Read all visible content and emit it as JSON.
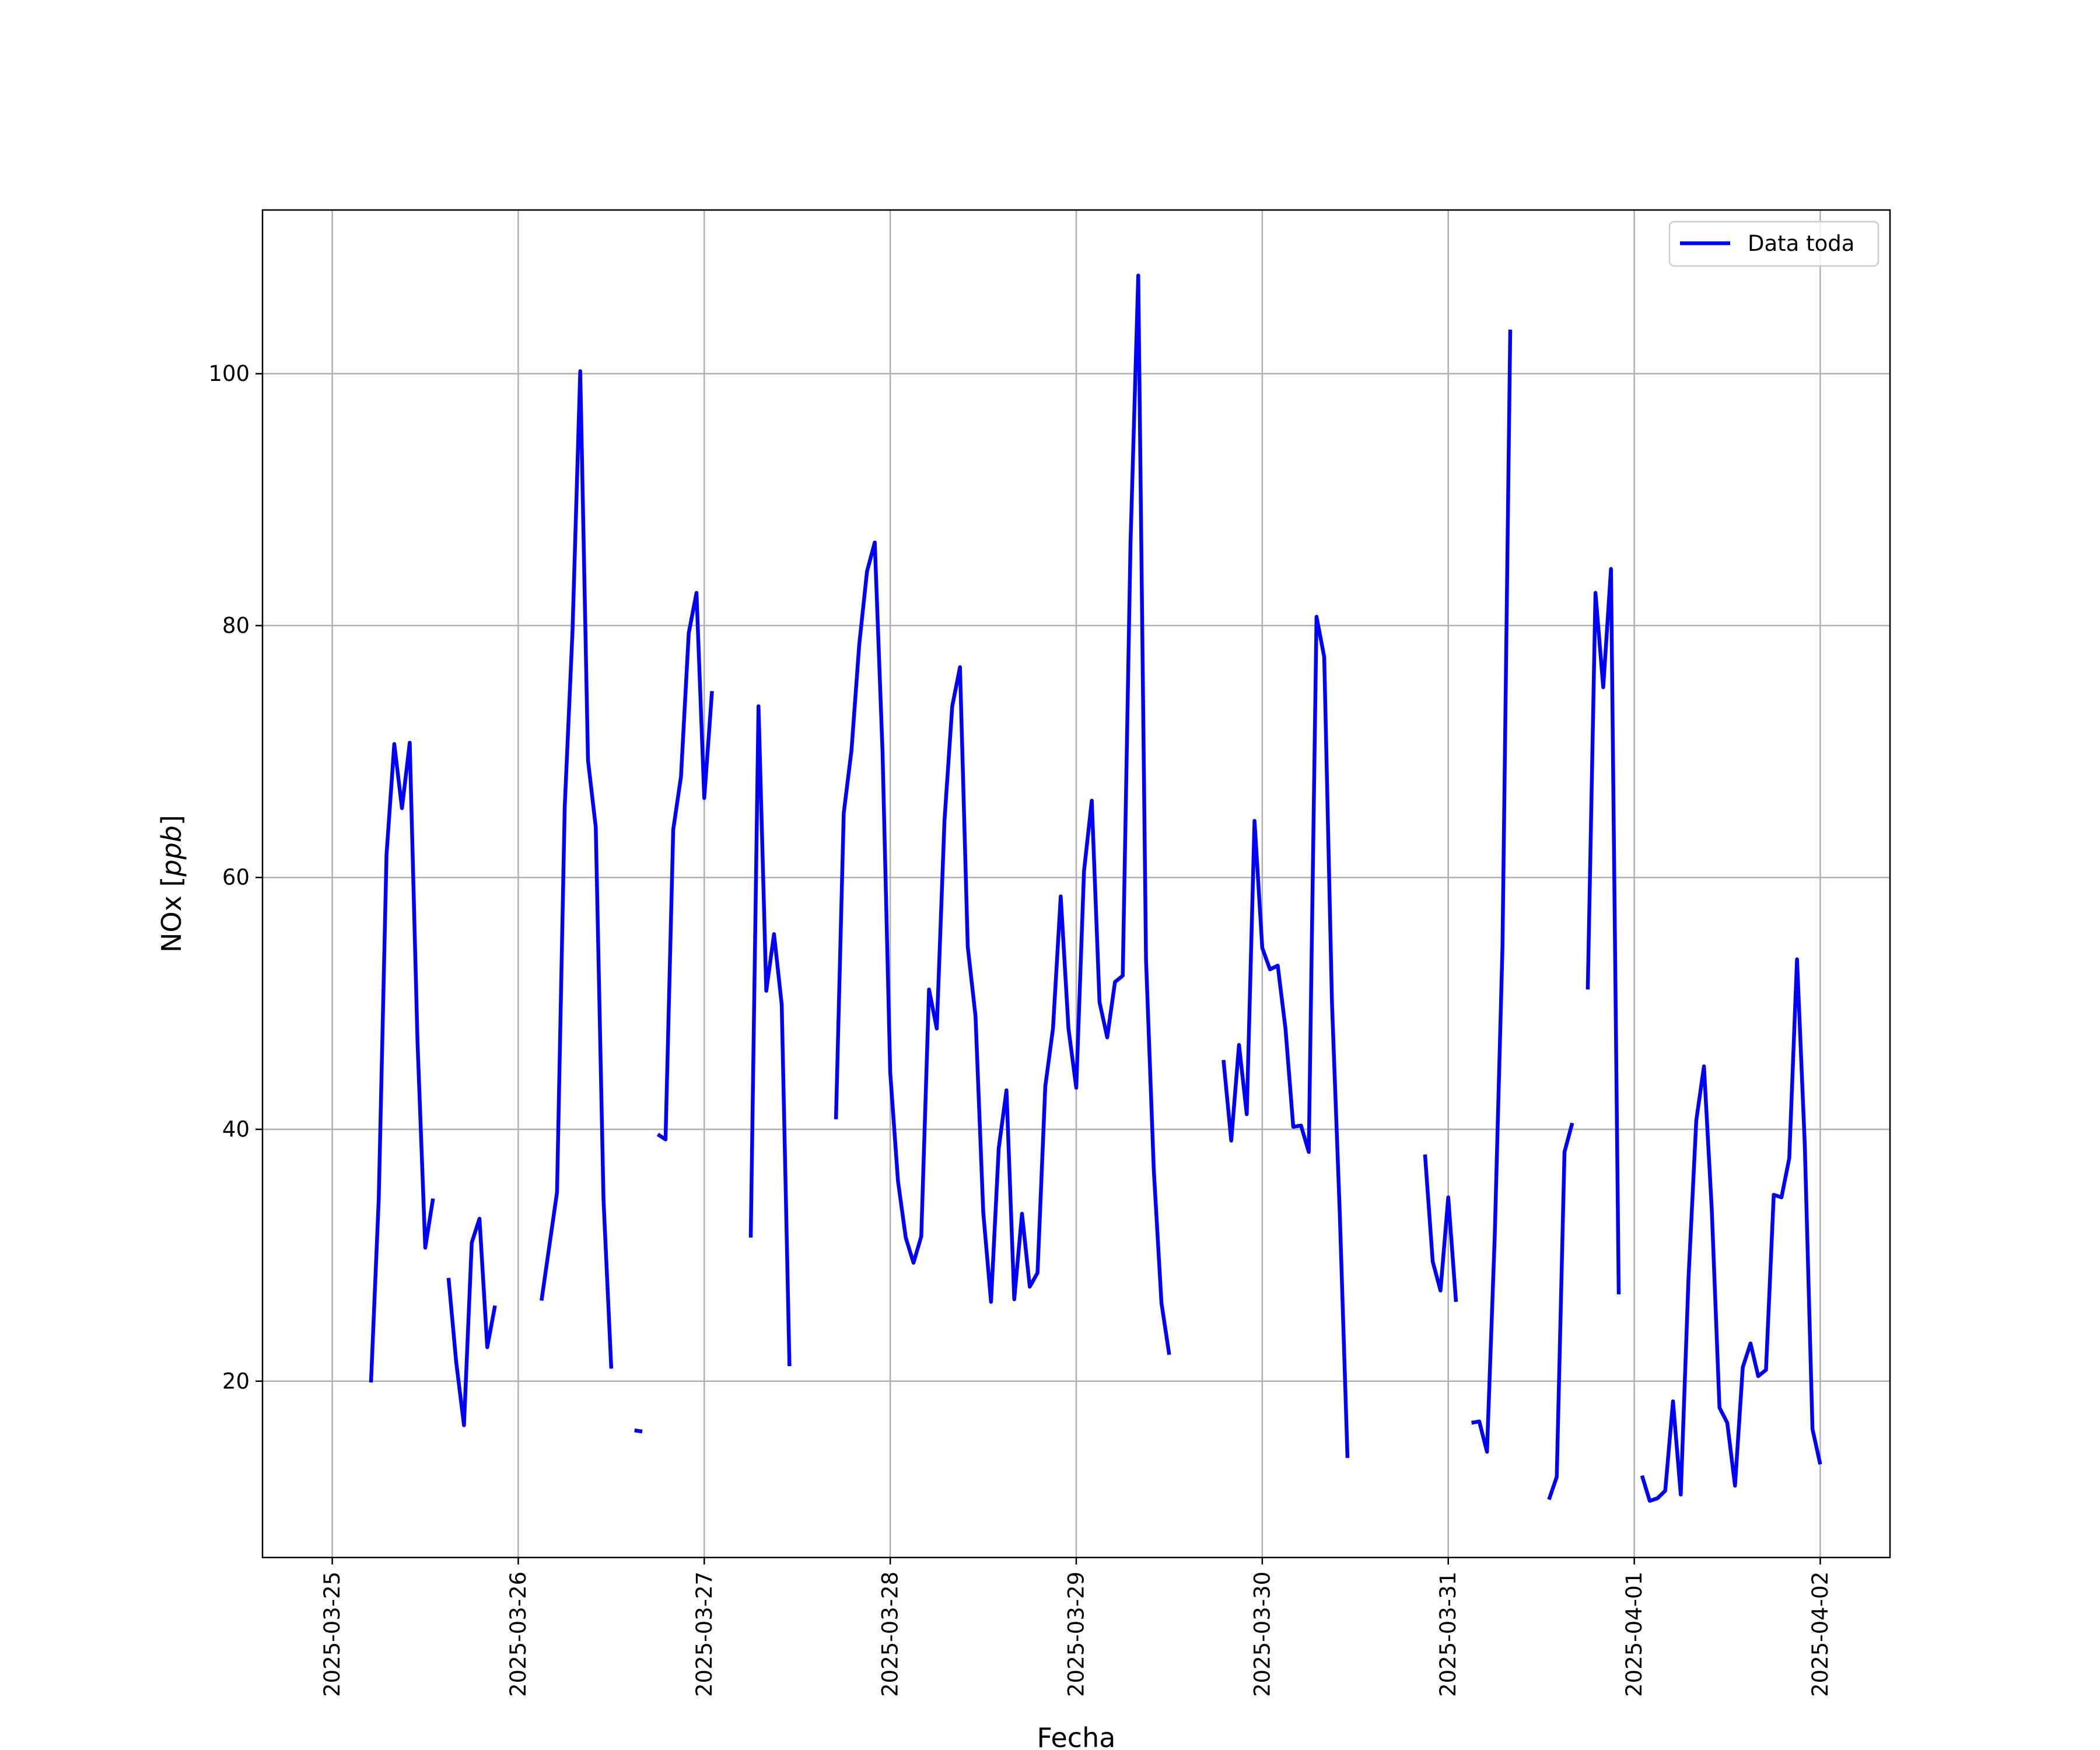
{
  "chart_data": {
    "type": "line",
    "title": "",
    "xlabel": "Fecha",
    "ylabel": "NOx [ppb]",
    "ylabel_main": "NOx [",
    "ylabel_unit": "ppb",
    "ylabel_end": "]",
    "x_ticks": [
      "2025-03-25",
      "2025-03-26",
      "2025-03-27",
      "2025-03-28",
      "2025-03-29",
      "2025-03-30",
      "2025-03-31",
      "2025-04-01",
      "2025-04-02"
    ],
    "y_ticks": [
      "20",
      "40",
      "60",
      "80",
      "100"
    ],
    "xlim": [
      "2025-03-24 15:00",
      "2025-04-02 09:00"
    ],
    "ylim": [
      6,
      113
    ],
    "grid": true,
    "legend_position": "top-right",
    "series": [
      {
        "name": "Data toda",
        "color": "#0000ff",
        "segments": [
          [
            [
              "2025-03-25 05:00",
              19.9
            ],
            [
              "2025-03-25 06:00",
              34.5
            ],
            [
              "2025-03-25 07:00",
              61.8
            ],
            [
              "2025-03-25 08:00",
              70.6
            ],
            [
              "2025-03-25 09:00",
              65.5
            ],
            [
              "2025-03-25 10:00",
              70.7
            ],
            [
              "2025-03-25 11:00",
              47.0
            ],
            [
              "2025-03-25 12:00",
              30.6
            ],
            [
              "2025-03-25 13:00",
              34.5
            ]
          ],
          [
            [
              "2025-03-25 15:00",
              28.2
            ],
            [
              "2025-03-25 16:00",
              21.5
            ],
            [
              "2025-03-25 17:00",
              16.5
            ],
            [
              "2025-03-25 18:00",
              31.0
            ],
            [
              "2025-03-25 19:00",
              32.9
            ],
            [
              "2025-03-25 20:00",
              22.7
            ],
            [
              "2025-03-25 21:00",
              26.0
            ]
          ],
          [
            [
              "2025-03-26 03:00",
              26.4
            ],
            [
              "2025-03-26 05:00",
              35.0
            ],
            [
              "2025-03-26 06:00",
              65.6
            ],
            [
              "2025-03-26 07:00",
              79.5
            ],
            [
              "2025-03-26 08:00",
              100.2
            ],
            [
              "2025-03-26 09:00",
              69.3
            ],
            [
              "2025-03-26 10:00",
              64.0
            ],
            [
              "2025-03-26 11:00",
              34.4
            ],
            [
              "2025-03-26 12:00",
              21.0
            ]
          ],
          [
            [
              "2025-03-26 15:00",
              16.1
            ],
            [
              "2025-03-26 16:00",
              16.0
            ]
          ],
          [
            [
              "2025-03-26 18:00",
              39.6
            ],
            [
              "2025-03-26 19:00",
              39.2
            ],
            [
              "2025-03-26 20:00",
              63.8
            ],
            [
              "2025-03-26 21:00",
              68.0
            ],
            [
              "2025-03-26 22:00",
              79.4
            ],
            [
              "2025-03-26 23:00",
              82.6
            ],
            [
              "2025-03-27 00:00",
              66.3
            ],
            [
              "2025-03-27 01:00",
              74.8
            ]
          ],
          [
            [
              "2025-03-27 06:00",
              31.4
            ],
            [
              "2025-03-27 07:00",
              73.6
            ],
            [
              "2025-03-27 08:00",
              51.0
            ],
            [
              "2025-03-27 09:00",
              55.5
            ],
            [
              "2025-03-27 10:00",
              49.9
            ],
            [
              "2025-03-27 11:00",
              21.2
            ]
          ],
          [
            [
              "2025-03-27 17:00",
              40.8
            ],
            [
              "2025-03-27 18:00",
              65.1
            ],
            [
              "2025-03-27 19:00",
              70.1
            ],
            [
              "2025-03-27 20:00",
              78.5
            ],
            [
              "2025-03-27 21:00",
              84.3
            ],
            [
              "2025-03-27 22:00",
              86.6
            ],
            [
              "2025-03-27 23:00",
              70.0
            ],
            [
              "2025-03-28 00:00",
              44.5
            ],
            [
              "2025-03-28 01:00",
              35.9
            ],
            [
              "2025-03-28 02:00",
              31.4
            ],
            [
              "2025-03-28 03:00",
              29.4
            ],
            [
              "2025-03-28 04:00",
              31.5
            ],
            [
              "2025-03-28 05:00",
              51.1
            ],
            [
              "2025-03-28 06:00",
              48.0
            ],
            [
              "2025-03-28 07:00",
              64.5
            ],
            [
              "2025-03-28 08:00",
              73.6
            ],
            [
              "2025-03-28 09:00",
              76.7
            ],
            [
              "2025-03-28 10:00",
              54.5
            ],
            [
              "2025-03-28 11:00",
              49.0
            ],
            [
              "2025-03-28 12:00",
              33.4
            ],
            [
              "2025-03-28 13:00",
              26.3
            ],
            [
              "2025-03-28 14:00",
              38.5
            ],
            [
              "2025-03-28 15:00",
              43.1
            ],
            [
              "2025-03-28 16:00",
              26.5
            ],
            [
              "2025-03-28 17:00",
              33.3
            ],
            [
              "2025-03-28 18:00",
              27.5
            ],
            [
              "2025-03-28 19:00",
              28.6
            ],
            [
              "2025-03-28 20:00",
              43.4
            ],
            [
              "2025-03-28 21:00",
              48.0
            ],
            [
              "2025-03-28 22:00",
              58.5
            ],
            [
              "2025-03-28 23:00",
              48.0
            ],
            [
              "2025-03-29 00:00",
              43.3
            ],
            [
              "2025-03-29 01:00",
              60.5
            ],
            [
              "2025-03-29 02:00",
              66.1
            ],
            [
              "2025-03-29 03:00",
              50.1
            ],
            [
              "2025-03-29 04:00",
              47.3
            ],
            [
              "2025-03-29 05:00",
              51.7
            ],
            [
              "2025-03-29 06:00",
              52.2
            ],
            [
              "2025-03-29 07:00",
              86.5
            ],
            [
              "2025-03-29 08:00",
              107.8
            ],
            [
              "2025-03-29 09:00",
              53.5
            ],
            [
              "2025-03-29 10:00",
              36.8
            ],
            [
              "2025-03-29 11:00",
              26.2
            ],
            [
              "2025-03-29 12:00",
              22.1
            ]
          ],
          [
            [
              "2025-03-29 19:00",
              45.5
            ],
            [
              "2025-03-29 20:00",
              39.1
            ],
            [
              "2025-03-29 21:00",
              46.7
            ],
            [
              "2025-03-29 22:00",
              41.2
            ],
            [
              "2025-03-29 23:00",
              64.5
            ],
            [
              "2025-03-30 00:00",
              54.4
            ],
            [
              "2025-03-30 01:00",
              52.7
            ],
            [
              "2025-03-30 02:00",
              53.0
            ],
            [
              "2025-03-30 03:00",
              48.0
            ],
            [
              "2025-03-30 04:00",
              40.2
            ],
            [
              "2025-03-30 05:00",
              40.3
            ],
            [
              "2025-03-30 06:00",
              38.2
            ],
            [
              "2025-03-30 07:00",
              80.7
            ],
            [
              "2025-03-30 08:00",
              77.5
            ],
            [
              "2025-03-30 09:00",
              50.0
            ],
            [
              "2025-03-30 10:00",
              33.4
            ],
            [
              "2025-03-30 11:00",
              13.9
            ]
          ],
          [
            [
              "2025-03-30 21:00",
              38.0
            ],
            [
              "2025-03-30 22:00",
              29.5
            ],
            [
              "2025-03-30 23:00",
              27.2
            ],
            [
              "2025-03-31 00:00",
              34.6
            ],
            [
              "2025-03-31 01:00",
              26.3
            ]
          ],
          [
            [
              "2025-03-31 03:00",
              16.7
            ],
            [
              "2025-03-31 04:00",
              16.8
            ],
            [
              "2025-03-31 05:00",
              14.4
            ],
            [
              "2025-03-31 06:00",
              31.5
            ],
            [
              "2025-03-31 07:00",
              54.5
            ],
            [
              "2025-03-31 08:00",
              103.5
            ]
          ],
          [
            [
              "2025-03-31 13:00",
              10.6
            ],
            [
              "2025-03-31 14:00",
              12.4
            ],
            [
              "2025-03-31 15:00",
              38.2
            ],
            [
              "2025-03-31 16:00",
              40.5
            ]
          ],
          [
            [
              "2025-03-31 18:00",
              51.1
            ],
            [
              "2025-03-31 19:00",
              82.6
            ],
            [
              "2025-03-31 20:00",
              75.1
            ],
            [
              "2025-03-31 21:00",
              84.5
            ],
            [
              "2025-03-31 22:00",
              26.9
            ]
          ],
          [
            [
              "2025-04-01 01:00",
              12.5
            ],
            [
              "2025-04-01 02:00",
              10.5
            ],
            [
              "2025-04-01 03:00",
              10.7
            ],
            [
              "2025-04-01 04:00",
              11.3
            ],
            [
              "2025-04-01 05:00",
              18.4
            ],
            [
              "2025-04-01 06:00",
              11.0
            ],
            [
              "2025-04-01 07:00",
              28.2
            ],
            [
              "2025-04-01 08:00",
              40.7
            ],
            [
              "2025-04-01 09:00",
              45.0
            ],
            [
              "2025-04-01 10:00",
              33.7
            ],
            [
              "2025-04-01 11:00",
              17.9
            ],
            [
              "2025-04-01 12:00",
              16.7
            ],
            [
              "2025-04-01 13:00",
              11.7
            ],
            [
              "2025-04-01 14:00",
              21.1
            ],
            [
              "2025-04-01 15:00",
              23.0
            ],
            [
              "2025-04-01 16:00",
              20.4
            ],
            [
              "2025-04-01 17:00",
              20.9
            ],
            [
              "2025-04-01 18:00",
              34.8
            ],
            [
              "2025-04-01 19:00",
              34.6
            ],
            [
              "2025-04-01 20:00",
              37.7
            ],
            [
              "2025-04-01 21:00",
              53.5
            ],
            [
              "2025-04-01 22:00",
              38.8
            ],
            [
              "2025-04-01 23:00",
              16.2
            ],
            [
              "2025-04-02 00:00",
              13.4
            ]
          ]
        ]
      }
    ]
  }
}
